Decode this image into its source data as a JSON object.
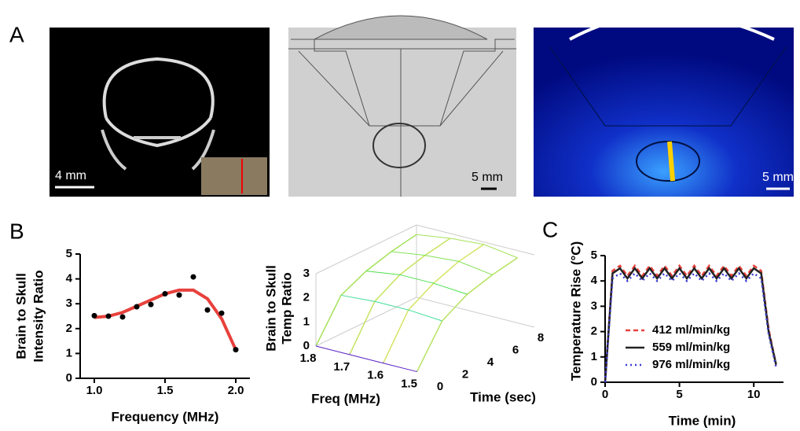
{
  "panel_labels": [
    "A",
    "B",
    "C"
  ],
  "scale_bars": [
    "4 mm",
    "5 mm",
    "5 mm"
  ],
  "chart_data": [
    {
      "type": "scatter",
      "y_label": [
        "Brain to Skull",
        "Intensity Ratio"
      ],
      "x_label": "Frequency (MHz)",
      "x": [
        1.0,
        1.1,
        1.2,
        1.3,
        1.4,
        1.5,
        1.6,
        1.7,
        1.8,
        1.9,
        2.0
      ],
      "values": [
        2.52,
        2.5,
        2.47,
        2.88,
        2.97,
        3.4,
        3.35,
        4.08,
        2.75,
        2.62,
        1.15
      ],
      "color": "#000000",
      "fit": {
        "x": [
          1.0,
          1.1,
          1.2,
          1.3,
          1.4,
          1.5,
          1.6,
          1.7,
          1.8,
          1.9,
          2.0
        ],
        "values": [
          2.45,
          2.5,
          2.65,
          2.9,
          3.15,
          3.4,
          3.55,
          3.55,
          3.2,
          2.4,
          1.15
        ],
        "color": "#e8413c"
      },
      "xlim": [
        0.9,
        2.1
      ],
      "xticks": [
        {
          "value": 1,
          "label": "1.0"
        },
        1.5,
        {
          "value": 2,
          "label": "2.0"
        }
      ],
      "ylim": [
        0,
        5
      ],
      "yticks": [
        0,
        1,
        2,
        3,
        4,
        5
      ]
    },
    {
      "type": "surface3d",
      "z_label": [
        "Brain to Skull",
        "Temp Ratio"
      ],
      "x_label": "Freq (MHz)",
      "y_label": "Time (sec)",
      "freq": [
        1.8,
        1.7,
        1.6,
        1.5
      ],
      "time": [
        0,
        2,
        4,
        6,
        8
      ],
      "z": [
        [
          0,
          1.6,
          2.1,
          2.4,
          2.6
        ],
        [
          0,
          1.7,
          2.3,
          2.6,
          2.8
        ],
        [
          0,
          1.7,
          2.3,
          2.7,
          2.9
        ],
        [
          0,
          1.6,
          2.2,
          2.5,
          2.7
        ]
      ],
      "xlim": [
        1.8,
        1.45
      ],
      "xticks": [
        1.8,
        1.7,
        1.6,
        1.5
      ],
      "ylim": [
        0,
        8
      ],
      "yticks": [
        0,
        2,
        4,
        6,
        8
      ],
      "zlim": [
        0,
        3
      ],
      "zticks": [
        0,
        1,
        2,
        3
      ]
    },
    {
      "type": "line",
      "y_label": "Temperature Rise (°C)",
      "x_label": "Time (min)",
      "x": [
        0,
        0.5,
        1,
        1.5,
        2,
        2.5,
        3,
        3.5,
        4,
        4.5,
        5,
        5.5,
        6,
        6.5,
        7,
        7.5,
        8,
        8.5,
        9,
        9.5,
        10,
        10.5,
        11,
        11.5
      ],
      "series": [
        {
          "name": "412 ml/min/kg",
          "color": "#e8413c",
          "dash": "6,4",
          "values": [
            0,
            4.4,
            4.6,
            4.2,
            4.6,
            4.2,
            4.6,
            4.2,
            4.6,
            4.2,
            4.6,
            4.2,
            4.6,
            4.2,
            4.6,
            4.2,
            4.6,
            4.2,
            4.6,
            4.2,
            4.6,
            4.4,
            2.1,
            0.7
          ]
        },
        {
          "name": "559 ml/min/kg",
          "color": "#222222",
          "dash": "",
          "values": [
            0,
            4.3,
            4.5,
            4.1,
            4.5,
            4.1,
            4.5,
            4.1,
            4.5,
            4.1,
            4.5,
            4.1,
            4.5,
            4.1,
            4.5,
            4.1,
            4.5,
            4.1,
            4.5,
            4.1,
            4.5,
            4.3,
            2.0,
            0.7
          ]
        },
        {
          "name": "976 ml/min/kg",
          "color": "#3b3bd6",
          "dash": "2,4",
          "values": [
            0,
            4.1,
            4.3,
            4.0,
            4.3,
            4.0,
            4.3,
            4.0,
            4.3,
            4.0,
            4.3,
            4.0,
            4.3,
            4.0,
            4.3,
            4.0,
            4.3,
            4.0,
            4.3,
            4.0,
            4.3,
            4.1,
            1.9,
            0.6
          ]
        }
      ],
      "xlim": [
        0,
        12
      ],
      "xticks": [
        0,
        5,
        10
      ],
      "ylim": [
        0,
        5
      ],
      "yticks": [
        0,
        1,
        2,
        3,
        4,
        5
      ]
    }
  ]
}
